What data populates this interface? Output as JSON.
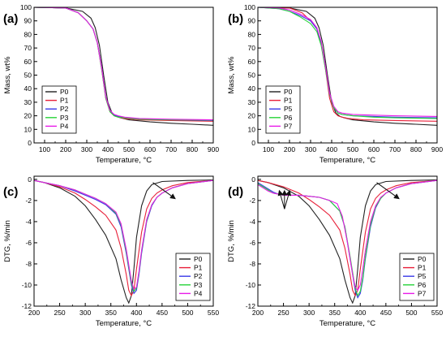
{
  "colors": {
    "P0": "#222222",
    "P1": "#e8213a",
    "P2": "#3a3ae8",
    "P3": "#27d33a",
    "P4": "#e81be8",
    "P5": "#3a3ae8",
    "P6": "#27d33a",
    "P7": "#e81be8"
  },
  "chart_data": [
    {
      "panel_label": "(a)",
      "type": "line",
      "xlabel": "Temperature, °C",
      "ylabel": "Mass, wt%",
      "xlim": [
        50,
        900
      ],
      "ylim": [
        0,
        100
      ],
      "xticks": [
        100,
        200,
        300,
        400,
        500,
        600,
        700,
        800,
        900
      ],
      "yticks": [
        0,
        10,
        20,
        30,
        40,
        50,
        60,
        70,
        80,
        90,
        100
      ],
      "legend_position": "bottom-left",
      "series": [
        {
          "name": "P0",
          "x": [
            50,
            200,
            280,
            320,
            340,
            360,
            380,
            400,
            420,
            440,
            460,
            500,
            600,
            700,
            800,
            900
          ],
          "y": [
            100,
            99.5,
            97,
            92,
            85,
            72,
            50,
            30,
            22,
            19.5,
            18.5,
            17,
            15.5,
            14.5,
            13.8,
            13
          ]
        },
        {
          "name": "P1",
          "x": [
            50,
            200,
            260,
            300,
            330,
            350,
            370,
            390,
            410,
            430,
            450,
            480,
            550,
            700,
            900
          ],
          "y": [
            100,
            99.5,
            96,
            90,
            84,
            74,
            55,
            33,
            23,
            20,
            19,
            18,
            17,
            16.5,
            16
          ]
        },
        {
          "name": "P2",
          "x": [
            50,
            200,
            260,
            300,
            330,
            350,
            370,
            390,
            410,
            430,
            450,
            480,
            550,
            700,
            900
          ],
          "y": [
            100,
            99.5,
            96,
            90,
            84,
            74,
            56,
            34,
            24,
            20.5,
            19.5,
            18.5,
            17.5,
            17,
            16.5
          ]
        },
        {
          "name": "P3",
          "x": [
            50,
            200,
            260,
            300,
            330,
            350,
            370,
            390,
            410,
            430,
            450,
            480,
            550,
            700,
            900
          ],
          "y": [
            100,
            99.5,
            96,
            90,
            84,
            74,
            55,
            33,
            23,
            20,
            19,
            18.5,
            17.5,
            17,
            16.8
          ]
        },
        {
          "name": "P4",
          "x": [
            50,
            200,
            260,
            300,
            330,
            350,
            370,
            390,
            410,
            430,
            450,
            480,
            550,
            700,
            900
          ],
          "y": [
            100,
            99.5,
            96,
            90,
            84,
            74,
            56,
            34,
            24,
            21,
            20,
            19,
            18,
            17.5,
            17
          ]
        }
      ]
    },
    {
      "panel_label": "(b)",
      "type": "line",
      "xlabel": "Temperature, °C",
      "ylabel": "Mass, wt%",
      "xlim": [
        50,
        900
      ],
      "ylim": [
        0,
        100
      ],
      "xticks": [
        100,
        200,
        300,
        400,
        500,
        600,
        700,
        800,
        900
      ],
      "yticks": [
        0,
        10,
        20,
        30,
        40,
        50,
        60,
        70,
        80,
        90,
        100
      ],
      "legend_position": "bottom-left",
      "series": [
        {
          "name": "P0",
          "x": [
            50,
            200,
            280,
            320,
            340,
            360,
            380,
            400,
            420,
            440,
            460,
            500,
            600,
            700,
            800,
            900
          ],
          "y": [
            100,
            99.5,
            97,
            92,
            85,
            72,
            50,
            30,
            22,
            19.5,
            18.5,
            17,
            15.5,
            14.5,
            13.8,
            13
          ]
        },
        {
          "name": "P1",
          "x": [
            50,
            200,
            260,
            300,
            330,
            350,
            370,
            390,
            410,
            430,
            450,
            480,
            550,
            700,
            900
          ],
          "y": [
            100,
            99.5,
            96,
            90,
            84,
            74,
            55,
            33,
            23,
            20,
            19,
            18,
            17,
            16.5,
            16
          ]
        },
        {
          "name": "P5",
          "x": [
            50,
            150,
            200,
            250,
            300,
            330,
            350,
            370,
            390,
            410,
            430,
            450,
            500,
            600,
            700,
            900
          ],
          "y": [
            100,
            99,
            97,
            94,
            90,
            84,
            74,
            56,
            36,
            26,
            22,
            21,
            20,
            19.5,
            19,
            18.5
          ]
        },
        {
          "name": "P6",
          "x": [
            50,
            150,
            200,
            250,
            300,
            330,
            350,
            370,
            390,
            410,
            430,
            450,
            500,
            600,
            700,
            900
          ],
          "y": [
            100,
            99,
            97,
            93,
            88,
            82,
            72,
            55,
            36,
            26,
            22,
            21,
            20,
            19,
            18.5,
            18
          ]
        },
        {
          "name": "P7",
          "x": [
            50,
            150,
            200,
            250,
            300,
            330,
            350,
            370,
            390,
            410,
            430,
            450,
            500,
            600,
            700,
            900
          ],
          "y": [
            100,
            99.5,
            98,
            95,
            91,
            85,
            75,
            57,
            37,
            27,
            23,
            22,
            21,
            20.5,
            20,
            19.5
          ]
        }
      ]
    },
    {
      "panel_label": "(c)",
      "type": "line",
      "xlabel": "Temperature, °C",
      "ylabel": "DTG, %/min",
      "xlim": [
        200,
        550
      ],
      "ylim": [
        -12,
        0.3
      ],
      "xticks": [
        200,
        250,
        300,
        350,
        400,
        450,
        500,
        550
      ],
      "yticks": [
        0,
        -2,
        -4,
        -6,
        -8,
        -10,
        -12
      ],
      "legend_position": "bottom-right",
      "annotation_arrow": {
        "from": [
          432,
          -0.3
        ],
        "to": [
          475,
          -1.8
        ]
      },
      "series": [
        {
          "name": "P0",
          "x": [
            200,
            220,
            250,
            280,
            300,
            320,
            340,
            360,
            370,
            380,
            385,
            390,
            395,
            400,
            410,
            420,
            430,
            450,
            500,
            550
          ],
          "y": [
            -0.1,
            -0.3,
            -0.8,
            -1.6,
            -2.5,
            -3.8,
            -5.3,
            -7.5,
            -9.5,
            -11.2,
            -11.7,
            -11,
            -8.5,
            -5.5,
            -2.5,
            -1.1,
            -0.5,
            -0.2,
            -0.1,
            -0.05
          ]
        },
        {
          "name": "P1",
          "x": [
            200,
            220,
            250,
            280,
            300,
            320,
            340,
            360,
            370,
            380,
            385,
            390,
            395,
            400,
            410,
            420,
            430,
            440,
            450,
            470,
            500,
            550
          ],
          "y": [
            -0.1,
            -0.3,
            -0.7,
            -1.3,
            -1.9,
            -2.6,
            -3.4,
            -4.8,
            -6.5,
            -9,
            -10.5,
            -11,
            -10.5,
            -8.5,
            -5,
            -2.8,
            -1.8,
            -1.3,
            -1,
            -0.6,
            -0.3,
            -0.1
          ]
        },
        {
          "name": "P2",
          "x": [
            200,
            220,
            250,
            280,
            300,
            320,
            340,
            360,
            370,
            380,
            390,
            395,
            400,
            405,
            410,
            420,
            430,
            440,
            450,
            470,
            500,
            550
          ],
          "y": [
            -0.1,
            -0.3,
            -0.6,
            -1.1,
            -1.5,
            -1.9,
            -2.4,
            -3.3,
            -4.5,
            -7,
            -10,
            -10.8,
            -10.5,
            -9,
            -7,
            -4,
            -2.5,
            -1.7,
            -1.3,
            -0.8,
            -0.4,
            -0.1
          ]
        },
        {
          "name": "P3",
          "x": [
            200,
            220,
            250,
            280,
            300,
            320,
            340,
            360,
            370,
            380,
            390,
            395,
            400,
            405,
            410,
            420,
            430,
            440,
            450,
            470,
            500,
            550
          ],
          "y": [
            -0.1,
            -0.3,
            -0.6,
            -1,
            -1.4,
            -1.8,
            -2.3,
            -3.2,
            -4.3,
            -6.8,
            -9.8,
            -10.6,
            -10.3,
            -8.8,
            -6.8,
            -3.9,
            -2.4,
            -1.7,
            -1.3,
            -0.8,
            -0.4,
            -0.1
          ]
        },
        {
          "name": "P4",
          "x": [
            200,
            220,
            250,
            280,
            300,
            320,
            340,
            360,
            370,
            380,
            390,
            395,
            400,
            405,
            410,
            420,
            430,
            440,
            450,
            470,
            500,
            550
          ],
          "y": [
            -0.1,
            -0.3,
            -0.6,
            -1,
            -1.4,
            -1.8,
            -2.3,
            -3.1,
            -4.2,
            -6.6,
            -9.6,
            -10.4,
            -10.2,
            -8.7,
            -6.7,
            -3.8,
            -2.4,
            -1.7,
            -1.3,
            -0.8,
            -0.4,
            -0.1
          ]
        }
      ]
    },
    {
      "panel_label": "(d)",
      "type": "line",
      "xlabel": "Temperature, °C",
      "ylabel": "DTG, %/min",
      "xlim": [
        200,
        550
      ],
      "ylim": [
        -12,
        0.3
      ],
      "xticks": [
        200,
        250,
        300,
        350,
        400,
        450,
        500,
        550
      ],
      "yticks": [
        0,
        -2,
        -4,
        -6,
        -8,
        -10,
        -12
      ],
      "legend_position": "bottom-right",
      "annotation_arrow": {
        "from": [
          432,
          -0.3
        ],
        "to": [
          475,
          -1.8
        ]
      },
      "annotation_arrows_multi": [
        {
          "from": [
            252,
            -2.8
          ],
          "to": [
            242,
            -1.1
          ]
        },
        {
          "from": [
            252,
            -2.8
          ],
          "to": [
            252,
            -1.1
          ]
        },
        {
          "from": [
            252,
            -2.8
          ],
          "to": [
            262,
            -1.1
          ]
        }
      ],
      "series": [
        {
          "name": "P0",
          "x": [
            200,
            220,
            250,
            280,
            300,
            320,
            340,
            360,
            370,
            380,
            385,
            390,
            395,
            400,
            410,
            420,
            430,
            450,
            500,
            550
          ],
          "y": [
            -0.1,
            -0.3,
            -0.8,
            -1.6,
            -2.5,
            -3.8,
            -5.3,
            -7.5,
            -9.5,
            -11.2,
            -11.7,
            -11,
            -8.5,
            -5.5,
            -2.5,
            -1.1,
            -0.5,
            -0.2,
            -0.1,
            -0.05
          ]
        },
        {
          "name": "P1",
          "x": [
            200,
            220,
            250,
            280,
            300,
            320,
            340,
            360,
            370,
            380,
            385,
            390,
            395,
            400,
            410,
            420,
            430,
            440,
            450,
            470,
            500,
            550
          ],
          "y": [
            -0.1,
            -0.3,
            -0.7,
            -1.3,
            -1.9,
            -2.6,
            -3.4,
            -4.8,
            -6.5,
            -9,
            -10.5,
            -11,
            -10.5,
            -8.5,
            -5,
            -2.8,
            -1.8,
            -1.3,
            -1,
            -0.6,
            -0.3,
            -0.1
          ]
        },
        {
          "name": "P5",
          "x": [
            200,
            210,
            220,
            230,
            240,
            250,
            260,
            280,
            300,
            320,
            340,
            360,
            370,
            380,
            390,
            395,
            400,
            405,
            410,
            420,
            430,
            440,
            450,
            470,
            500,
            550
          ],
          "y": [
            -0.3,
            -0.6,
            -0.9,
            -1.2,
            -1.4,
            -1.5,
            -1.5,
            -1.5,
            -1.6,
            -1.7,
            -2,
            -3,
            -4.5,
            -7.5,
            -10.5,
            -11.2,
            -10.8,
            -9.5,
            -7.5,
            -4.5,
            -2.7,
            -1.8,
            -1.3,
            -0.8,
            -0.4,
            -0.1
          ]
        },
        {
          "name": "P6",
          "x": [
            200,
            210,
            220,
            230,
            240,
            250,
            260,
            280,
            300,
            320,
            340,
            360,
            370,
            380,
            390,
            395,
            400,
            405,
            410,
            420,
            430,
            440,
            450,
            470,
            500,
            550
          ],
          "y": [
            -0.4,
            -0.7,
            -1,
            -1.3,
            -1.4,
            -1.5,
            -1.5,
            -1.5,
            -1.6,
            -1.7,
            -2,
            -3,
            -4.5,
            -7.3,
            -10.3,
            -11,
            -10.6,
            -9.3,
            -7.3,
            -4.3,
            -2.6,
            -1.8,
            -1.3,
            -0.8,
            -0.4,
            -0.1
          ]
        },
        {
          "name": "P7",
          "x": [
            200,
            210,
            220,
            230,
            240,
            250,
            260,
            280,
            300,
            320,
            340,
            355,
            365,
            375,
            385,
            390,
            395,
            400,
            405,
            410,
            420,
            430,
            440,
            450,
            470,
            500,
            550
          ],
          "y": [
            -0.5,
            -0.8,
            -1.1,
            -1.3,
            -1.4,
            -1.5,
            -1.5,
            -1.5,
            -1.6,
            -1.7,
            -2,
            -2.3,
            -3.5,
            -6,
            -9,
            -10.2,
            -10.5,
            -10,
            -8.5,
            -6.7,
            -4,
            -2.5,
            -1.7,
            -1.3,
            -0.8,
            -0.4,
            -0.1
          ]
        }
      ]
    }
  ]
}
